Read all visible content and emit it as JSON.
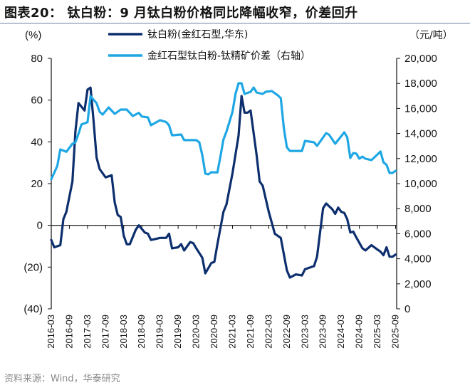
{
  "title": "图表20：  钛白粉：9 月钛白粉价格同比降幅收窄，价差回升",
  "source": "资料来源：Wind，华泰研究",
  "chart_data": {
    "type": "line",
    "title": "",
    "y_left_unit": "(%)",
    "y_right_unit": "（元/吨）",
    "y_left": {
      "range": [
        -40,
        80
      ],
      "ticks": [
        80,
        60,
        40,
        20,
        0,
        -20,
        -40
      ],
      "tick_labels": [
        "80",
        "60",
        "40",
        "20",
        "0",
        "(20)",
        "(40)"
      ]
    },
    "y_right": {
      "range": [
        0,
        20000
      ],
      "ticks": [
        20000,
        18000,
        16000,
        14000,
        12000,
        10000,
        8000,
        6000,
        4000,
        2000,
        0
      ],
      "tick_labels": [
        "20,000",
        "18,000",
        "16,000",
        "14,000",
        "12,000",
        "10,000",
        "8,000",
        "6,000",
        "4,000",
        "2,000",
        "0"
      ]
    },
    "x_tick_labels": [
      "2016-03",
      "2016-09",
      "2017-03",
      "2017-09",
      "2018-03",
      "2018-09",
      "2019-03",
      "2019-09",
      "2020-03",
      "2020-09",
      "2021-03",
      "2021-09",
      "2022-03",
      "2022-09",
      "2023-03",
      "2023-09",
      "2024-03",
      "2024-09",
      "2025-03",
      "2025-09"
    ],
    "grid": false,
    "legend": "top-center",
    "series": [
      {
        "name": "钛白粉(金红石型,华东)",
        "axis": "left",
        "color": "#0d2f6e",
        "points": [
          [
            "2016-03",
            -7
          ],
          [
            "2016-04",
            -10.5
          ],
          [
            "2016-06",
            -9.5
          ],
          [
            "2016-07",
            3
          ],
          [
            "2016-08",
            6.5
          ],
          [
            "2016-10",
            21
          ],
          [
            "2016-11",
            45
          ],
          [
            "2016-12",
            58.6
          ],
          [
            "2017-02",
            55
          ],
          [
            "2017-03",
            65
          ],
          [
            "2017-04",
            66
          ],
          [
            "2017-05",
            50
          ],
          [
            "2017-06",
            32.5
          ],
          [
            "2017-07",
            27
          ],
          [
            "2017-09",
            23
          ],
          [
            "2017-11",
            24
          ],
          [
            "2017-12",
            11
          ],
          [
            "2018-01",
            5
          ],
          [
            "2018-02",
            4
          ],
          [
            "2018-03",
            -5
          ],
          [
            "2018-04",
            -9
          ],
          [
            "2018-05",
            -9
          ],
          [
            "2018-07",
            -2
          ],
          [
            "2018-08",
            0
          ],
          [
            "2018-10",
            -3.5
          ],
          [
            "2018-11",
            -4
          ],
          [
            "2018-12",
            -7
          ],
          [
            "2019-03",
            -6
          ],
          [
            "2019-05",
            -6
          ],
          [
            "2019-06",
            -4
          ],
          [
            "2019-07",
            -11
          ],
          [
            "2019-09",
            -10.5
          ],
          [
            "2019-10",
            -9
          ],
          [
            "2019-11",
            -12
          ],
          [
            "2020-01",
            -8
          ],
          [
            "2020-02",
            -8.5
          ],
          [
            "2020-03",
            -11
          ],
          [
            "2020-05",
            -15.5
          ],
          [
            "2020-06",
            -23
          ],
          [
            "2020-08",
            -18
          ],
          [
            "2020-09",
            -17.5
          ],
          [
            "2020-10",
            -9
          ],
          [
            "2020-12",
            6.5
          ],
          [
            "2021-01",
            10
          ],
          [
            "2021-03",
            25
          ],
          [
            "2021-05",
            43
          ],
          [
            "2021-06",
            62
          ],
          [
            "2021-07",
            54
          ],
          [
            "2021-08",
            54
          ],
          [
            "2021-09",
            55
          ],
          [
            "2021-11",
            33.5
          ],
          [
            "2021-12",
            21
          ],
          [
            "2022-01",
            19
          ],
          [
            "2022-03",
            6.5
          ],
          [
            "2022-05",
            -4
          ],
          [
            "2022-07",
            -6
          ],
          [
            "2022-09",
            -21.5
          ],
          [
            "2022-10",
            -25
          ],
          [
            "2022-12",
            -23.5
          ],
          [
            "2023-02",
            -24
          ],
          [
            "2023-03",
            -21
          ],
          [
            "2023-06",
            -19.5
          ],
          [
            "2023-07",
            -15
          ],
          [
            "2023-09",
            8.2
          ],
          [
            "2023-10",
            10.5
          ],
          [
            "2023-12",
            7.8
          ],
          [
            "2024-01",
            5.5
          ],
          [
            "2024-02",
            8.5
          ],
          [
            "2024-03",
            6.5
          ],
          [
            "2024-04",
            6
          ],
          [
            "2024-05",
            3
          ],
          [
            "2024-06",
            -3.4
          ],
          [
            "2024-07",
            -3
          ],
          [
            "2024-08",
            -5.8
          ],
          [
            "2024-10",
            -10.9
          ],
          [
            "2024-11",
            -12
          ],
          [
            "2025-01",
            -9.5
          ],
          [
            "2025-03",
            -11.6
          ],
          [
            "2025-04",
            -12.6
          ],
          [
            "2025-05",
            -14.3
          ],
          [
            "2025-06",
            -10.5
          ],
          [
            "2025-07",
            -15
          ],
          [
            "2025-08",
            -15
          ],
          [
            "2025-09",
            -14
          ]
        ]
      },
      {
        "name": "金红石型钛白粉-钛精矿价差（右轴）",
        "axis": "right",
        "color": "#1ea7e4",
        "points": [
          [
            "2016-03",
            10340
          ],
          [
            "2016-05",
            11420
          ],
          [
            "2016-06",
            12730
          ],
          [
            "2016-08",
            12540
          ],
          [
            "2016-10",
            13180
          ],
          [
            "2016-11",
            13300
          ],
          [
            "2016-12",
            13980
          ],
          [
            "2017-01",
            14720
          ],
          [
            "2017-03",
            14900
          ],
          [
            "2017-04",
            16990
          ],
          [
            "2017-06",
            16420
          ],
          [
            "2017-07",
            15740
          ],
          [
            "2017-08",
            15510
          ],
          [
            "2017-10",
            16080
          ],
          [
            "2017-12",
            15570
          ],
          [
            "2018-02",
            15910
          ],
          [
            "2018-04",
            15910
          ],
          [
            "2018-06",
            15400
          ],
          [
            "2018-08",
            15650
          ],
          [
            "2018-09",
            15350
          ],
          [
            "2018-11",
            15290
          ],
          [
            "2018-12",
            14660
          ],
          [
            "2019-03",
            15060
          ],
          [
            "2019-05",
            14920
          ],
          [
            "2019-06",
            14660
          ],
          [
            "2019-07",
            13860
          ],
          [
            "2019-10",
            13920
          ],
          [
            "2019-11",
            13470
          ],
          [
            "2020-03",
            13470
          ],
          [
            "2020-04",
            13300
          ],
          [
            "2020-05",
            12270
          ],
          [
            "2020-06",
            10800
          ],
          [
            "2020-07",
            10740
          ],
          [
            "2020-08",
            10910
          ],
          [
            "2020-10",
            10890
          ],
          [
            "2020-11",
            12160
          ],
          [
            "2020-12",
            13520
          ],
          [
            "2021-01",
            14150
          ],
          [
            "2021-03",
            15740
          ],
          [
            "2021-04",
            17160
          ],
          [
            "2021-05",
            18010
          ],
          [
            "2021-06",
            18010
          ],
          [
            "2021-07",
            17160
          ],
          [
            "2021-09",
            17330
          ],
          [
            "2021-10",
            17670
          ],
          [
            "2021-11",
            17270
          ],
          [
            "2022-01",
            17160
          ],
          [
            "2022-02",
            17330
          ],
          [
            "2022-04",
            17390
          ],
          [
            "2022-06",
            17050
          ],
          [
            "2022-07",
            16820
          ],
          [
            "2022-08",
            14430
          ],
          [
            "2022-09",
            12900
          ],
          [
            "2022-10",
            12610
          ],
          [
            "2023-02",
            12610
          ],
          [
            "2023-03",
            13410
          ],
          [
            "2023-06",
            13300
          ],
          [
            "2023-07",
            13010
          ],
          [
            "2023-10",
            14030
          ],
          [
            "2023-11",
            13900
          ],
          [
            "2024-01",
            13180
          ],
          [
            "2024-04",
            14090
          ],
          [
            "2024-05",
            13700
          ],
          [
            "2024-06",
            12050
          ],
          [
            "2024-07",
            12440
          ],
          [
            "2024-08",
            12400
          ],
          [
            "2024-09",
            11990
          ],
          [
            "2024-10",
            12160
          ],
          [
            "2024-11",
            11990
          ],
          [
            "2025-01",
            11880
          ],
          [
            "2025-03",
            12330
          ],
          [
            "2025-04",
            12560
          ],
          [
            "2025-05",
            11700
          ],
          [
            "2025-06",
            11500
          ],
          [
            "2025-07",
            10850
          ],
          [
            "2025-08",
            10850
          ],
          [
            "2025-09",
            11020
          ]
        ]
      }
    ]
  }
}
